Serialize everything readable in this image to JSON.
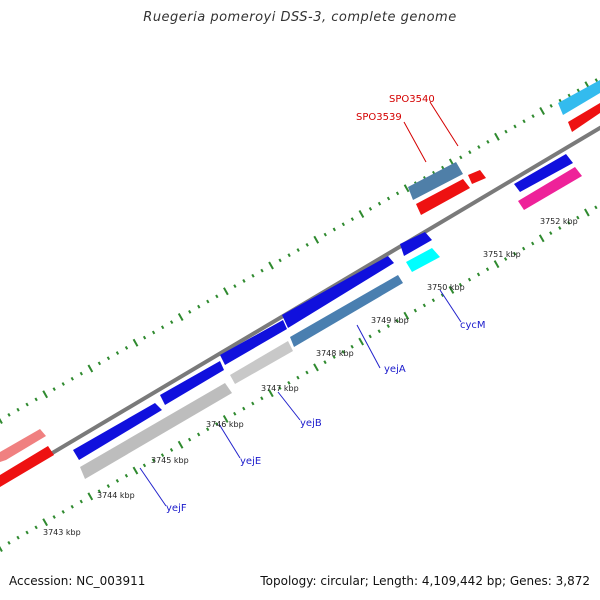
{
  "title": "Ruegeria pomeroyi DSS-3, complete genome",
  "footer": {
    "accession": "Accession: NC_003911",
    "summary": "Topology: circular; Length: 4,109,442 bp; Genes: 3,872"
  },
  "colors": {
    "backbone": "#7a7a7a",
    "tick": "#2f8a2f",
    "label_red": "#d40000",
    "label_blue": "#1a1acc",
    "leader": "#2222cc"
  },
  "ticks": [
    {
      "kbp": 3743,
      "label": "3743 kbp"
    },
    {
      "kbp": 3744,
      "label": "3744 kbp"
    },
    {
      "kbp": 3745,
      "label": "3745 kbp"
    },
    {
      "kbp": 3746,
      "label": "3746 kbp"
    },
    {
      "kbp": 3747,
      "label": "3747 kbp"
    },
    {
      "kbp": 3748,
      "label": "3748 kbp"
    },
    {
      "kbp": 3749,
      "label": "3749 kbp"
    },
    {
      "kbp": 3750,
      "label": "3750 kbp"
    },
    {
      "kbp": 3751,
      "label": "3751 kbp"
    },
    {
      "kbp": 3752,
      "label": "3752 kbp"
    }
  ],
  "gene_labels": [
    {
      "name": "SPO3540",
      "color": "red"
    },
    {
      "name": "SPO3539",
      "color": "red"
    },
    {
      "name": "cycM",
      "color": "blue"
    },
    {
      "name": "yejA",
      "color": "blue"
    },
    {
      "name": "yejB",
      "color": "blue"
    },
    {
      "name": "yejE",
      "color": "blue"
    },
    {
      "name": "yejF",
      "color": "blue"
    }
  ],
  "features": [
    {
      "id": "left-red-outer",
      "color": "#f08080",
      "strand": "+"
    },
    {
      "id": "left-red-inner",
      "color": "#ee1111",
      "strand": "+"
    },
    {
      "id": "yejF-blue",
      "color": "#1010dd",
      "strand": "+"
    },
    {
      "id": "yejF-gray",
      "color": "#bdbdbd",
      "strand": "+"
    },
    {
      "id": "yejE-blue",
      "color": "#1010dd",
      "strand": "+"
    },
    {
      "id": "yejE-gray",
      "color": "#c8c8c8",
      "strand": "+"
    },
    {
      "id": "yejB-blue",
      "color": "#1010dd",
      "strand": "+"
    },
    {
      "id": "yejA-blue",
      "color": "#1010dd",
      "strand": "+"
    },
    {
      "id": "yejA-steel",
      "color": "#4a7fb0",
      "strand": "+"
    },
    {
      "id": "cycM-blue",
      "color": "#1010dd",
      "strand": "+"
    },
    {
      "id": "cycM-cyan",
      "color": "#00ffff",
      "strand": "+"
    },
    {
      "id": "SPO3539-steel",
      "color": "#4f7fa8",
      "strand": "+"
    },
    {
      "id": "SPO3539-red",
      "color": "#ee1111",
      "strand": "+"
    },
    {
      "id": "SPO3540-red",
      "color": "#ee1111",
      "strand": "+"
    },
    {
      "id": "right-blue",
      "color": "#1010dd",
      "strand": "-"
    },
    {
      "id": "right-magenta",
      "color": "#ee2299",
      "strand": "+"
    },
    {
      "id": "far-right-cyan",
      "color": "#33bbee",
      "strand": "+"
    },
    {
      "id": "far-right-red",
      "color": "#ee1111",
      "strand": "+"
    }
  ]
}
